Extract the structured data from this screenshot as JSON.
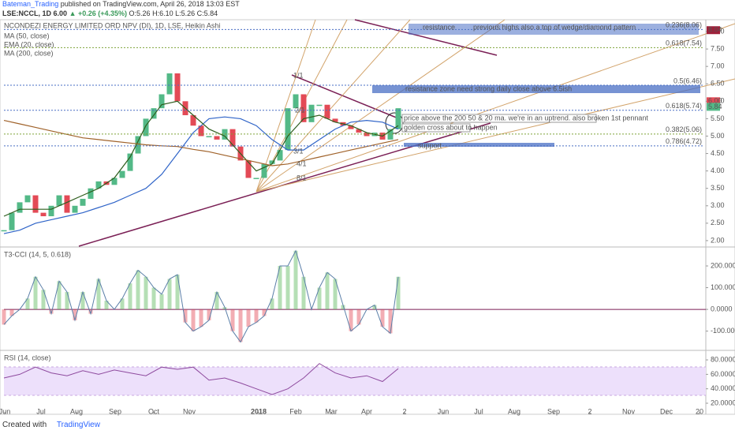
{
  "header": {
    "user": "Bateman_Trading",
    "published": "published on TradingView.com, April 26, 2018 13:03 EST",
    "symbol": "LSE:NCCL, 1D",
    "price": "6.00",
    "change": "▲ +0.26 (+4.35%)",
    "ohlc": "O:5.26 H:6.10 L:5.26 C:5.84"
  },
  "footer": {
    "created": "Created with",
    "brand": "TradingView"
  },
  "time_labels": [
    "Jun",
    "Jul",
    "Aug",
    "Sep",
    "Oct",
    "Nov",
    "2018",
    "Feb",
    "Mar",
    "Apr",
    "2",
    "Jun",
    "Jul",
    "Aug",
    "Sep",
    "2",
    "Nov",
    "Dec",
    "20"
  ],
  "chart_data": [
    {
      "type": "candlestick",
      "title": "NCONDEZI ENERGY LIMITED ORD NPV (DI), 1D, LSE, Heikin Ashi",
      "up_color": "#53b987",
      "down_color": "#e34a56",
      "values": [
        2.3,
        2.8,
        3.1,
        3.3,
        2.8,
        2.7,
        3.0,
        3.3,
        2.8,
        3.0,
        3.2,
        3.5,
        3.7,
        3.6,
        3.8,
        4.0,
        4.5,
        5.0,
        5.5,
        5.8,
        6.2,
        6.8,
        6.0,
        5.6,
        5.3,
        5.0,
        5.0,
        4.9,
        5.2,
        4.7,
        4.3,
        3.8,
        3.8,
        4.2,
        4.3,
        4.6,
        5.8,
        6.2,
        5.4,
        5.9,
        5.9,
        5.5,
        5.4,
        5.3,
        5.2,
        5.1,
        5.0,
        5.1,
        4.9,
        5.2,
        5.8
      ],
      "series": [
        {
          "name": "MA (50, close)",
          "color": "#2f64c8",
          "values": [
            2.2,
            2.3,
            2.5,
            2.6,
            2.7,
            2.8,
            2.95,
            3.1,
            3.3,
            3.5,
            3.9,
            4.5,
            5.1,
            5.5,
            5.55,
            5.5,
            5.3,
            4.9,
            4.6,
            4.6,
            4.9,
            5.2,
            5.4,
            5.45,
            5.4,
            5.2
          ]
        },
        {
          "name": "EMA (20, close)",
          "color": "#2e5e1e",
          "values": [
            2.7,
            2.9,
            2.9,
            2.9,
            3.1,
            3.3,
            3.5,
            3.8,
            4.4,
            5.3,
            5.9,
            6.0,
            5.6,
            5.2,
            5.0,
            4.5,
            4.0,
            4.2,
            5.0,
            5.5,
            5.6,
            5.4,
            5.3,
            5.1,
            5.0,
            5.3
          ]
        },
        {
          "name": "MA (200, close)",
          "color": "#a0622a",
          "values": [
            5.45,
            5.35,
            5.25,
            5.15,
            5.05,
            4.95,
            4.9,
            4.85,
            4.8,
            4.75,
            4.72,
            4.7,
            4.62,
            4.55,
            4.45,
            4.35,
            4.25,
            4.15,
            4.2,
            4.3,
            4.4,
            4.5,
            4.6,
            4.7,
            4.8,
            4.9
          ]
        }
      ],
      "ylim": [
        1.84,
        8.34
      ],
      "yticks": [
        {
          "value": 2,
          "label": "2.00"
        },
        {
          "value": 2.5,
          "label": "2.50"
        },
        {
          "value": 3,
          "label": "3.00"
        },
        {
          "value": 3.5,
          "label": "3.50"
        },
        {
          "value": 4,
          "label": "4.00"
        },
        {
          "value": 4.5,
          "label": "4.50"
        },
        {
          "value": 5,
          "label": "5.00"
        },
        {
          "value": 5.5,
          "label": "5.50"
        },
        {
          "value": 6,
          "label": "6.00"
        },
        {
          "value": 6.5,
          "label": "6.50"
        },
        {
          "value": 7,
          "label": "7.00"
        },
        {
          "value": 7.5,
          "label": "7.50"
        },
        {
          "value": 8,
          "label": "8.00"
        }
      ],
      "levels": [
        {
          "value": 8.06,
          "label": "0.236(8.06)",
          "color": "#4a6fc4"
        },
        {
          "value": 7.54,
          "label": "0.618(7.54)",
          "color": "#7fa33a"
        },
        {
          "value": 6.46,
          "label": "0.5(6.46)",
          "color": "#4a6fc4"
        },
        {
          "value": 5.74,
          "label": "0.618(5.74)",
          "color": "#4a6fc4"
        },
        {
          "value": 5.06,
          "label": "0.382(5.06)",
          "color": "#7fa33a"
        },
        {
          "value": 4.72,
          "label": "0.786(4.72)",
          "color": "#4a6fc4"
        }
      ],
      "price_labels": [
        {
          "value": 8.04,
          "label": "8.04",
          "color": "#a0203a"
        },
        {
          "value": 6.0,
          "label": "6.00",
          "color": "#e34a56"
        },
        {
          "value": 5.84,
          "label": "5.84",
          "color": "#53b987"
        }
      ],
      "annotations": {
        "resistance": "resistance",
        "previous_highs": "previous highs also a top of wedge/diamond pattern",
        "resistance_zone": "resistance zone need strong daily close above 6.5ish",
        "uptrend": "price above the 200 50 & 20 ma.  we're in an uptrend. also broken 1st pennant",
        "golden_cross": "golden cross about to happen",
        "support": "support",
        "fan": [
          "1/1",
          "2/1",
          "3/1",
          "4/1",
          "8/1"
        ]
      }
    },
    {
      "type": "histogram",
      "title": "T3-CCI (14, 5, 0.618)",
      "up_color": "#5cb85c",
      "down_color": "#e34a56",
      "line_color": "#5b7fa8",
      "values": [
        -70,
        -30,
        0,
        50,
        150,
        90,
        -20,
        130,
        80,
        -50,
        80,
        -20,
        140,
        40,
        0,
        50,
        120,
        180,
        150,
        100,
        70,
        140,
        160,
        -60,
        -100,
        -80,
        -50,
        80,
        10,
        -100,
        -150,
        -80,
        -60,
        -30,
        50,
        200,
        200,
        270,
        150,
        0,
        100,
        170,
        140,
        20,
        -100,
        -70,
        0,
        20,
        -80,
        -110,
        150
      ],
      "ylim": [
        -185,
        280
      ],
      "yticks": [
        {
          "value": 200,
          "label": "200.0000"
        },
        {
          "value": 100,
          "label": "100.0000"
        },
        {
          "value": 0,
          "label": "0.0000"
        },
        {
          "value": -100,
          "label": "-100.0000"
        }
      ]
    },
    {
      "type": "line",
      "title": "RSI (14, close)",
      "color": "#8e4a9e",
      "values": [
        55,
        60,
        70,
        62,
        58,
        65,
        60,
        66,
        62,
        58,
        70,
        67,
        70,
        52,
        55,
        48,
        40,
        32,
        40,
        55,
        75,
        62,
        55,
        58,
        50,
        68
      ],
      "ylim": [
        8,
        91
      ],
      "yticks": [
        {
          "value": 80,
          "label": "80.0000"
        },
        {
          "value": 60,
          "label": "60.0000"
        },
        {
          "value": 40,
          "label": "40.0000"
        },
        {
          "value": 20,
          "label": "20.0000"
        }
      ]
    }
  ]
}
